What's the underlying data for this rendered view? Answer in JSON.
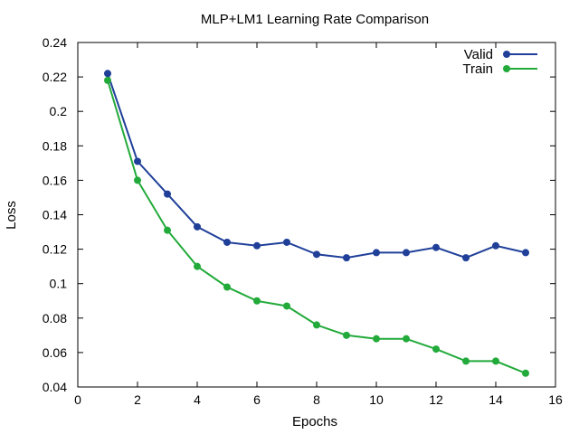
{
  "chart_data": {
    "type": "line",
    "title": "MLP+LM1 Learning Rate Comparison",
    "xlabel": "Epochs",
    "ylabel": "Loss",
    "xlim": [
      0,
      16
    ],
    "ylim": [
      0.04,
      0.24
    ],
    "x_ticks": [
      0,
      2,
      4,
      6,
      8,
      10,
      12,
      14,
      16
    ],
    "x_tick_labels": [
      "0",
      "2",
      "4",
      "6",
      "8",
      "10",
      "12",
      "14",
      "16"
    ],
    "y_ticks": [
      0.04,
      0.06,
      0.08,
      0.1,
      0.12,
      0.14,
      0.16,
      0.18,
      0.2,
      0.22,
      0.24
    ],
    "y_tick_labels": [
      "0.04",
      "0.06",
      "0.08",
      "0.1",
      "0.12",
      "0.14",
      "0.16",
      "0.18",
      "0.2",
      "0.22",
      "0.24"
    ],
    "grid": false,
    "legend_position": "top-right",
    "x": [
      1,
      2,
      3,
      4,
      5,
      6,
      7,
      8,
      9,
      10,
      11,
      12,
      13,
      14,
      15
    ],
    "series": [
      {
        "name": "Valid",
        "color": "#1f3f99",
        "values": [
          0.222,
          0.171,
          0.152,
          0.133,
          0.124,
          0.122,
          0.124,
          0.117,
          0.115,
          0.118,
          0.118,
          0.121,
          0.115,
          0.122,
          0.118
        ]
      },
      {
        "name": "Train",
        "color": "#22aa3a",
        "values": [
          0.218,
          0.16,
          0.131,
          0.11,
          0.098,
          0.09,
          0.087,
          0.076,
          0.07,
          0.068,
          0.068,
          0.062,
          0.055,
          0.055,
          0.048
        ]
      }
    ]
  }
}
